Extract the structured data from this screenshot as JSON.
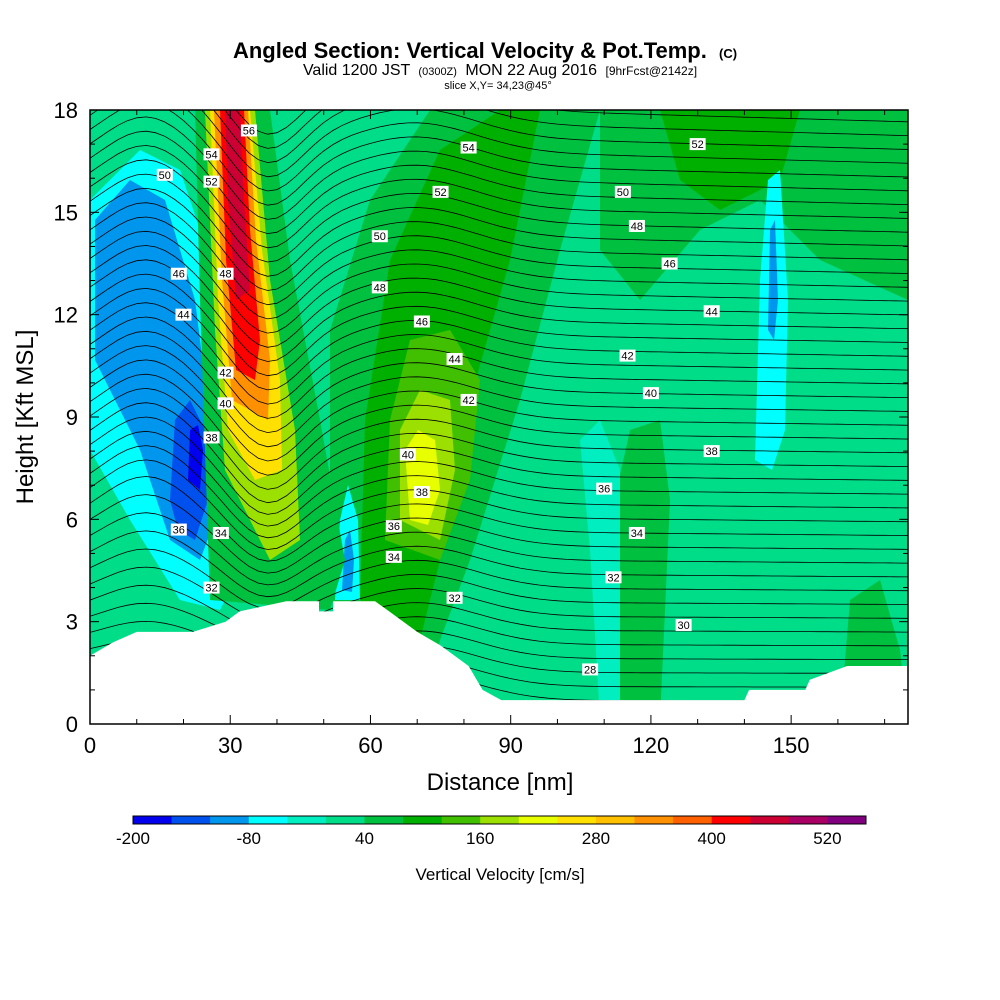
{
  "title": {
    "main": "Angled Section: Vertical Velocity & Pot.Temp.",
    "main_unit": "(C)",
    "valid_prefix": "Valid 1200 JST",
    "valid_utc": "(0300Z)",
    "valid_date": "MON 22 Aug 2016",
    "forecast": "[9hrFcst@2142z]",
    "slice": "slice X,Y= 34,23@45°"
  },
  "chart_data": {
    "type": "heatmap",
    "xlabel": "Distance [nm]",
    "ylabel": "Height [Kft MSL]",
    "xlim": [
      0,
      175
    ],
    "ylim": [
      0,
      18
    ],
    "xticks": [
      "0",
      "30",
      "60",
      "90",
      "120",
      "150"
    ],
    "yticks": [
      "0",
      "3",
      "6",
      "9",
      "12",
      "15",
      "18"
    ],
    "colorbar": {
      "label": "Vertical Velocity [cm/s]",
      "tick_labels": [
        "-200",
        "-80",
        "40",
        "160",
        "280",
        "400",
        "520"
      ],
      "levels": [
        -200,
        -160,
        -120,
        -80,
        -40,
        0,
        40,
        80,
        120,
        160,
        200,
        240,
        280,
        320,
        360,
        400,
        440,
        480,
        520,
        560
      ],
      "colors": [
        "#0000ee",
        "#0050ee",
        "#0096ee",
        "#00ffff",
        "#00eec0",
        "#00dd88",
        "#00c040",
        "#00b000",
        "#40c000",
        "#9be000",
        "#e8ff00",
        "#ffe000",
        "#ffc000",
        "#ff9000",
        "#ff6000",
        "#ff0000",
        "#cc0033",
        "#aa0066",
        "#800080"
      ]
    },
    "vertical_velocity_features": [
      {
        "kind": "downdraft",
        "x_range": [
          2,
          30
        ],
        "z_range": [
          4,
          16
        ],
        "min_cm_s": -200
      },
      {
        "kind": "updraft",
        "x_range": [
          25,
          40
        ],
        "z_range": [
          4,
          18
        ],
        "max_cm_s": 480
      },
      {
        "kind": "updraft",
        "x_range": [
          60,
          85
        ],
        "z_range": [
          5,
          12
        ],
        "max_cm_s": 160
      },
      {
        "kind": "downdraft",
        "x_range": [
          52,
          58
        ],
        "z_range": [
          4,
          6
        ],
        "min_cm_s": -80
      },
      {
        "kind": "downdraft",
        "x_range": [
          142,
          148
        ],
        "z_range": [
          9,
          16
        ],
        "min_cm_s": -80
      }
    ],
    "potential_temperature_labels": [
      {
        "x": 16,
        "z": 16.1,
        "text": "50"
      },
      {
        "x": 26,
        "z": 16.7,
        "text": "54"
      },
      {
        "x": 34,
        "z": 17.4,
        "text": "56"
      },
      {
        "x": 26,
        "z": 15.9,
        "text": "52"
      },
      {
        "x": 19,
        "z": 13.2,
        "text": "46"
      },
      {
        "x": 20,
        "z": 12.0,
        "text": "44"
      },
      {
        "x": 29,
        "z": 13.2,
        "text": "48"
      },
      {
        "x": 29,
        "z": 10.3,
        "text": "42"
      },
      {
        "x": 29,
        "z": 9.4,
        "text": "40"
      },
      {
        "x": 26,
        "z": 8.4,
        "text": "38"
      },
      {
        "x": 19,
        "z": 5.7,
        "text": "36"
      },
      {
        "x": 28,
        "z": 5.6,
        "text": "34"
      },
      {
        "x": 26,
        "z": 4.0,
        "text": "32"
      },
      {
        "x": 81,
        "z": 16.9,
        "text": "54"
      },
      {
        "x": 75,
        "z": 15.6,
        "text": "52"
      },
      {
        "x": 62,
        "z": 14.3,
        "text": "50"
      },
      {
        "x": 62,
        "z": 12.8,
        "text": "48"
      },
      {
        "x": 71,
        "z": 11.8,
        "text": "46"
      },
      {
        "x": 78,
        "z": 10.7,
        "text": "44"
      },
      {
        "x": 81,
        "z": 9.5,
        "text": "42"
      },
      {
        "x": 68,
        "z": 7.9,
        "text": "40"
      },
      {
        "x": 71,
        "z": 6.8,
        "text": "38"
      },
      {
        "x": 65,
        "z": 5.8,
        "text": "36"
      },
      {
        "x": 65,
        "z": 4.9,
        "text": "34"
      },
      {
        "x": 78,
        "z": 3.7,
        "text": "32"
      },
      {
        "x": 130,
        "z": 17.0,
        "text": "52"
      },
      {
        "x": 114,
        "z": 15.6,
        "text": "50"
      },
      {
        "x": 117,
        "z": 14.6,
        "text": "48"
      },
      {
        "x": 124,
        "z": 13.5,
        "text": "46"
      },
      {
        "x": 133,
        "z": 12.1,
        "text": "44"
      },
      {
        "x": 115,
        "z": 10.8,
        "text": "42"
      },
      {
        "x": 120,
        "z": 9.7,
        "text": "40"
      },
      {
        "x": 133,
        "z": 8.0,
        "text": "38"
      },
      {
        "x": 110,
        "z": 6.9,
        "text": "36"
      },
      {
        "x": 117,
        "z": 5.6,
        "text": "34"
      },
      {
        "x": 112,
        "z": 4.3,
        "text": "32"
      },
      {
        "x": 127,
        "z": 2.9,
        "text": "30"
      },
      {
        "x": 107,
        "z": 1.6,
        "text": "28"
      }
    ],
    "terrain": [
      {
        "x": 0,
        "z": 2.0
      },
      {
        "x": 5,
        "z": 2.4
      },
      {
        "x": 10,
        "z": 2.7
      },
      {
        "x": 22,
        "z": 2.7
      },
      {
        "x": 29,
        "z": 3.0
      },
      {
        "x": 32,
        "z": 3.3
      },
      {
        "x": 42,
        "z": 3.6
      },
      {
        "x": 49,
        "z": 3.6
      },
      {
        "x": 49,
        "z": 3.3
      },
      {
        "x": 52,
        "z": 3.3
      },
      {
        "x": 52,
        "z": 3.6
      },
      {
        "x": 61,
        "z": 3.6
      },
      {
        "x": 64,
        "z": 3.3
      },
      {
        "x": 70,
        "z": 2.7
      },
      {
        "x": 75,
        "z": 2.3
      },
      {
        "x": 81,
        "z": 1.7
      },
      {
        "x": 84,
        "z": 1.0
      },
      {
        "x": 88,
        "z": 0.7
      },
      {
        "x": 104,
        "z": 0.7
      },
      {
        "x": 130,
        "z": 0.7
      },
      {
        "x": 140,
        "z": 0.7
      },
      {
        "x": 141,
        "z": 1.0
      },
      {
        "x": 153,
        "z": 1.0
      },
      {
        "x": 154,
        "z": 1.3
      },
      {
        "x": 162,
        "z": 1.7
      },
      {
        "x": 175,
        "z": 1.7
      }
    ]
  }
}
